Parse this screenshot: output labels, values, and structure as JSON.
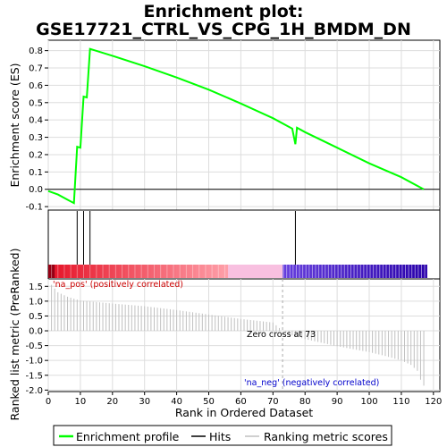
{
  "title_line1": "Enrichment plot:",
  "title_line2": "GSE17721_CTRL_VS_CPG_1H_BMDM_DN",
  "colors": {
    "es_line": "#00ff00",
    "hit_line": "#000000",
    "metric_bar": "#c0c0c0",
    "pos_text": "#cc0000",
    "neg_text": "#0000cc",
    "zero_cross_line": "#aaaaaa",
    "grid": "#dddddd"
  },
  "chart_data": [
    {
      "type": "line",
      "name": "enrichment-score-panel",
      "ylabel": "Enrichment score (ES)",
      "xlim": [
        0,
        122
      ],
      "ylim": [
        -0.12,
        0.86
      ],
      "yticks": [
        -0.1,
        0.0,
        0.1,
        0.2,
        0.3,
        0.4,
        0.5,
        0.6,
        0.7,
        0.8
      ],
      "ytick_labels": [
        "-0.1",
        "0.0",
        "0.1",
        "0.2",
        "0.3",
        "0.4",
        "0.5",
        "0.6",
        "0.7",
        "0.8"
      ],
      "grid": true,
      "points": [
        [
          0,
          -0.01
        ],
        [
          3,
          -0.03
        ],
        [
          6,
          -0.06
        ],
        [
          8,
          -0.08
        ],
        [
          9,
          0.245
        ],
        [
          10,
          0.24
        ],
        [
          11,
          0.535
        ],
        [
          12,
          0.53
        ],
        [
          13,
          0.81
        ],
        [
          20,
          0.77
        ],
        [
          30,
          0.71
        ],
        [
          40,
          0.645
        ],
        [
          50,
          0.575
        ],
        [
          60,
          0.495
        ],
        [
          70,
          0.41
        ],
        [
          76,
          0.35
        ],
        [
          77,
          0.26
        ],
        [
          77.5,
          0.355
        ],
        [
          80,
          0.33
        ],
        [
          90,
          0.24
        ],
        [
          100,
          0.15
        ],
        [
          110,
          0.07
        ],
        [
          117,
          0.0
        ]
      ]
    },
    {
      "type": "hits",
      "name": "hits-panel",
      "hit_positions": [
        9,
        11,
        13,
        77
      ]
    },
    {
      "type": "heatmap",
      "name": "ranking-color-bar",
      "positive_segment": [
        0,
        56
      ],
      "neutral_segment": [
        56,
        73
      ],
      "negative_segment": [
        73,
        118
      ]
    },
    {
      "type": "bar",
      "name": "ranked-metric-panel",
      "xlabel": "Rank in Ordered Dataset",
      "ylabel": "Ranked list metric (PreRanked)",
      "xlim": [
        0,
        122
      ],
      "ylim": [
        -2.05,
        1.75
      ],
      "xticks": [
        0,
        10,
        20,
        30,
        40,
        50,
        60,
        70,
        80,
        90,
        100,
        110,
        120
      ],
      "yticks": [
        -2.0,
        -1.5,
        -1.0,
        -0.5,
        0.0,
        0.5,
        1.0,
        1.5
      ],
      "ytick_labels": [
        "-2.0",
        "-1.5",
        "-1.0",
        "-0.5",
        "0.0",
        "0.5",
        "1.0",
        "1.5"
      ],
      "grid": true,
      "zero_cross": 73,
      "zero_cross_label": "Zero cross at 73",
      "pos_label": "'na_pos' (positively correlated)",
      "neg_label": "'na_neg' (negatively correlated)",
      "metric_anchors": [
        [
          1,
          1.55
        ],
        [
          3,
          1.3
        ],
        [
          6,
          1.15
        ],
        [
          10,
          1.02
        ],
        [
          20,
          0.92
        ],
        [
          30,
          0.83
        ],
        [
          40,
          0.7
        ],
        [
          50,
          0.55
        ],
        [
          60,
          0.4
        ],
        [
          70,
          0.28
        ],
        [
          73,
          0.0
        ],
        [
          75,
          -0.12
        ],
        [
          80,
          -0.28
        ],
        [
          90,
          -0.52
        ],
        [
          100,
          -0.72
        ],
        [
          105,
          -0.85
        ],
        [
          110,
          -1.0
        ],
        [
          113,
          -1.15
        ],
        [
          115,
          -1.35
        ],
        [
          116,
          -1.65
        ],
        [
          117,
          -1.85
        ]
      ]
    }
  ],
  "legend": {
    "enrichment_label": "Enrichment profile",
    "hits_label": "Hits",
    "ranking_label": "Ranking metric scores"
  }
}
